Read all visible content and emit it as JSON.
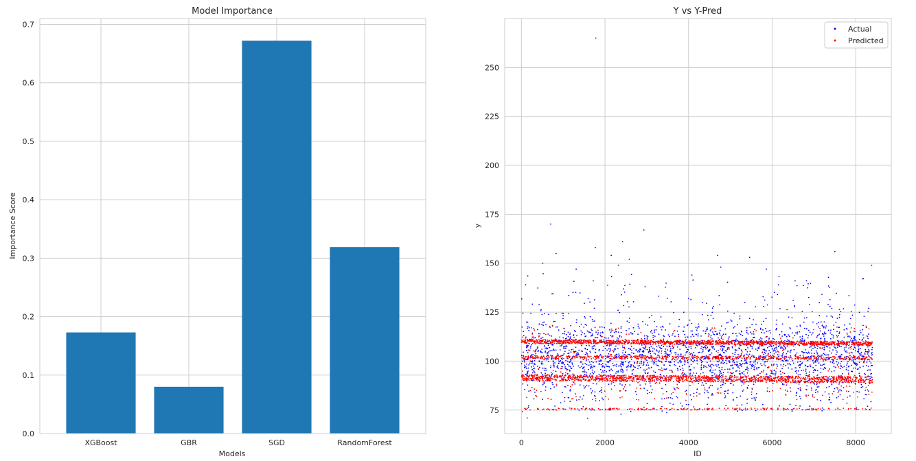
{
  "colors": {
    "bar": "#1f77b4",
    "actual": "#0000ff",
    "predicted": "#ff0000",
    "grid": "#cccccc"
  },
  "chart_data": [
    {
      "type": "bar",
      "title": "Model Importance",
      "xlabel": "Models",
      "ylabel": "Importance Score",
      "categories": [
        "XGBoost",
        "GBR",
        "SGD",
        "RandomForest"
      ],
      "values": [
        0.173,
        0.08,
        0.672,
        0.319
      ],
      "ylim": [
        0,
        0.71
      ],
      "yticks": [
        0.0,
        0.1,
        0.2,
        0.3,
        0.4,
        0.5,
        0.6,
        0.7
      ],
      "ytick_labels": [
        "0.0",
        "0.1",
        "0.2",
        "0.3",
        "0.4",
        "0.5",
        "0.6",
        "0.7"
      ],
      "grid": true
    },
    {
      "type": "scatter",
      "title": "Y vs Y-Pred",
      "xlabel": "ID",
      "ylabel": "y",
      "xlim": [
        -400,
        8850
      ],
      "ylim": [
        63,
        275
      ],
      "xticks": [
        0,
        2000,
        4000,
        6000,
        8000
      ],
      "xtick_labels": [
        "0",
        "2000",
        "4000",
        "6000",
        "8000"
      ],
      "yticks": [
        75,
        100,
        125,
        150,
        175,
        200,
        225,
        250
      ],
      "ytick_labels": [
        "75",
        "100",
        "125",
        "150",
        "175",
        "200",
        "225",
        "250"
      ],
      "grid": true,
      "legend_position": "top-right",
      "series": [
        {
          "name": "Actual",
          "color": "#0000ff",
          "x_range": [
            0,
            8400
          ],
          "bulk_range": [
            88,
            118
          ],
          "points": [
            [
              1780,
              265
            ],
            [
              700,
              170
            ],
            [
              2930,
              167
            ],
            [
              2420,
              161
            ],
            [
              1770,
              158
            ],
            [
              7500,
              156
            ],
            [
              830,
              155
            ],
            [
              4690,
              154
            ],
            [
              2150,
              154
            ],
            [
              5460,
              153
            ],
            [
              510,
              150
            ],
            [
              2320,
              149
            ],
            [
              8380,
              149
            ],
            [
              4770,
              148
            ],
            [
              5860,
              147
            ],
            [
              1310,
              147
            ],
            [
              2580,
              152
            ],
            [
              1720,
              141
            ],
            [
              6550,
              141
            ],
            [
              8170,
              142
            ],
            [
              100,
              139
            ],
            [
              2960,
              138
            ],
            [
              4000,
              132
            ],
            [
              6150,
              139
            ]
          ]
        },
        {
          "name": "Predicted",
          "color": "#ff0000",
          "x_range": [
            0,
            8400
          ],
          "bands": [
            {
              "level": 91.5,
              "end": 90.5,
              "width": 3.2,
              "density": "high"
            },
            {
              "level": 110,
              "end": 109,
              "width": 2.0,
              "density": "high"
            },
            {
              "level": 102,
              "end": 101.5,
              "width": 1.6,
              "density": "medium"
            },
            {
              "level": 75.5,
              "end": 75.5,
              "width": 1.0,
              "density": "low"
            }
          ]
        }
      ]
    }
  ]
}
